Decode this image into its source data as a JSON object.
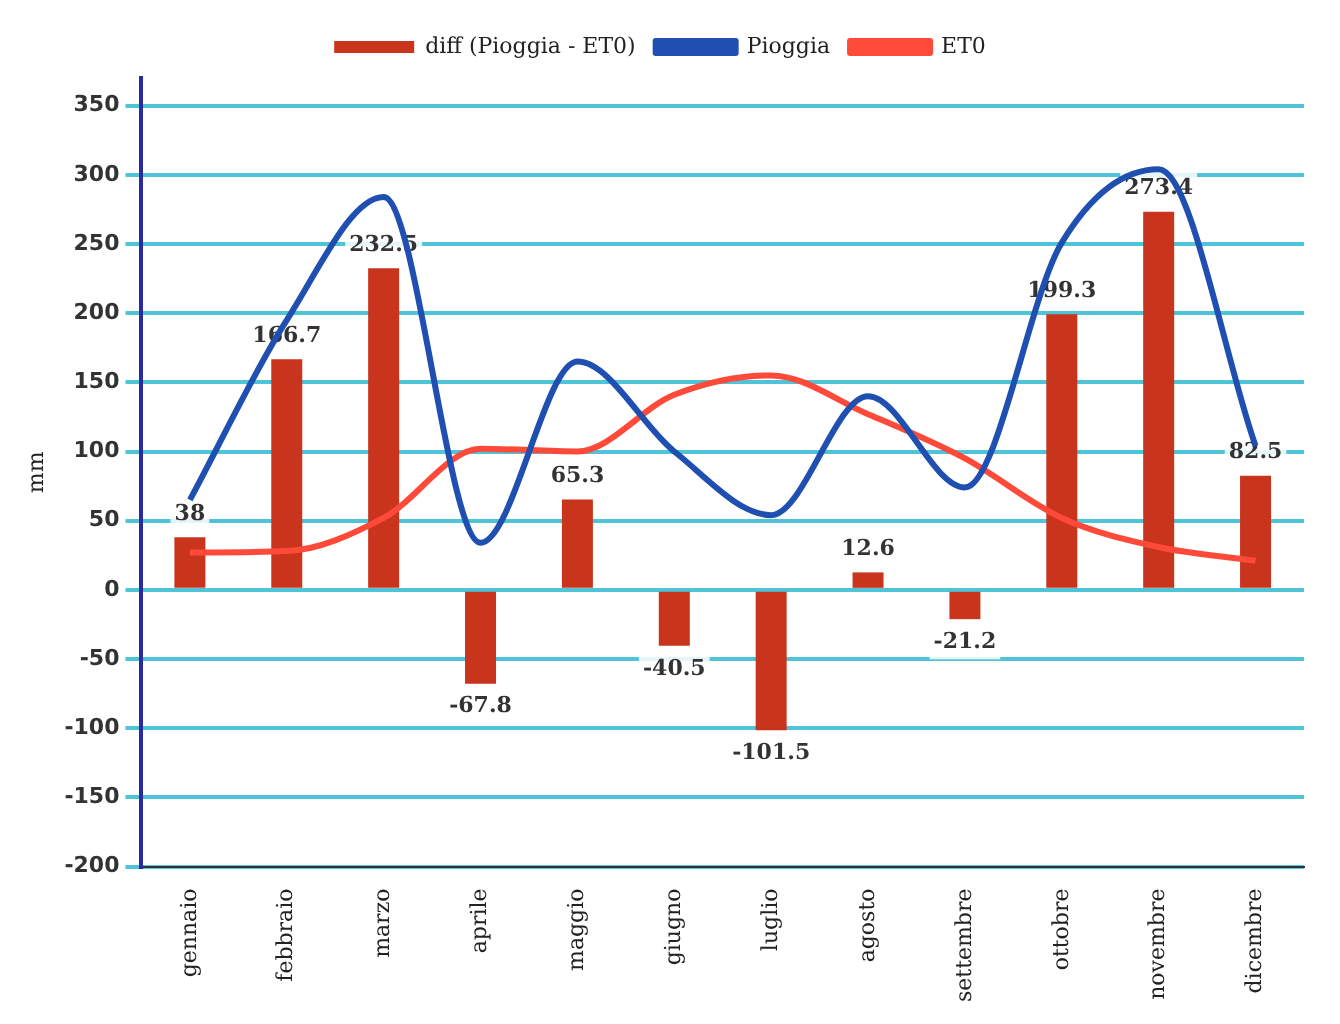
{
  "chart_data": {
    "type": "bar",
    "ylabel": "mm",
    "categories": [
      "gennaio",
      "febbraio",
      "marzo",
      "aprile",
      "maggio",
      "giugno",
      "luglio",
      "agosto",
      "settembre",
      "ottobre",
      "novembre",
      "dicembre"
    ],
    "series": [
      {
        "name": "diff (Pioggia - ET0)",
        "color": "#c8341c",
        "values": [
          38,
          166.7,
          232.5,
          -67.8,
          65.3,
          -40.5,
          -101.5,
          12.6,
          -21.2,
          199.3,
          273.4,
          82.5
        ],
        "value_labels": [
          "38",
          "166.7",
          "232.5",
          "-67.8",
          "65.3",
          "-40.5",
          "-101.5",
          "12.6",
          "-21.2",
          "199.3",
          "273.4",
          "82.5"
        ]
      },
      {
        "name": "Pioggia",
        "type": "line",
        "color": "#1f4fb0",
        "values": [
          65,
          195,
          284,
          34,
          165,
          100,
          54,
          140,
          74,
          251,
          304,
          104
        ]
      },
      {
        "name": "ET0",
        "type": "line",
        "color": "#ff4a3a",
        "values": [
          27,
          28,
          52,
          102,
          100,
          141,
          155,
          127,
          95,
          52,
          31,
          21
        ]
      }
    ],
    "ylim": [
      -200,
      370
    ],
    "yticks": [
      -200,
      -150,
      -100,
      -50,
      0,
      50,
      100,
      150,
      200,
      250,
      300,
      350
    ],
    "grid": "y",
    "legend": "top",
    "marker": "none"
  }
}
